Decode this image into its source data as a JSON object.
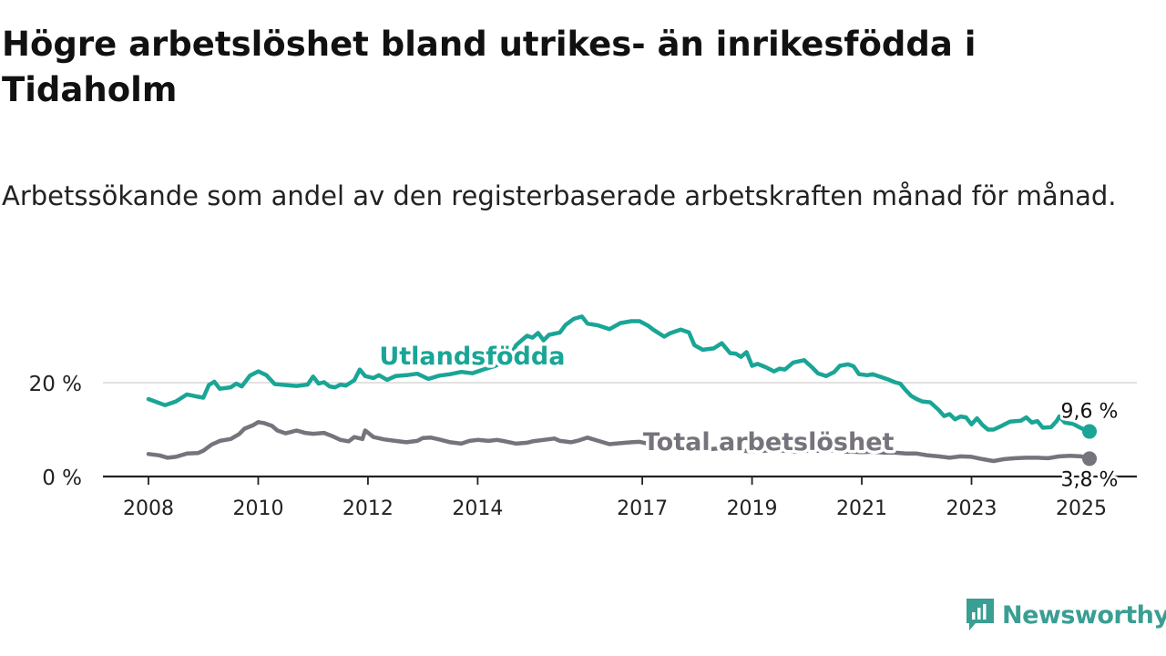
{
  "title": "Högre arbetslöshet bland utrikes- än inrikesfödda i Tidaholm",
  "subtitle": "Arbetssökande som andel av den registerbaserade arbetskraften månad för månad.",
  "brand": {
    "name": "Newsworthy",
    "color": "#3a9e92"
  },
  "colors": {
    "foreign": "#1aa596",
    "total": "#77737c",
    "grid": "#d9d9d9",
    "axis": "#222222"
  },
  "chart_data": {
    "type": "line",
    "title": "Högre arbetslöshet bland utrikes- än inrikesfödda i Tidaholm",
    "subtitle": "Arbetssökande som andel av den registerbaserade arbetskraften månad för månad.",
    "ylim": [
      0,
      36
    ],
    "y_ticks": [
      {
        "value": 0,
        "label": "0 %"
      },
      {
        "value": 20,
        "label": "20 %"
      }
    ],
    "x_ticks": [
      {
        "value": 2008.0,
        "label": "2008"
      },
      {
        "value": 2010.0,
        "label": "2010"
      },
      {
        "value": 2012.0,
        "label": "2012"
      },
      {
        "value": 2014.0,
        "label": "2014"
      },
      {
        "value": 2017.0,
        "label": "2017"
      },
      {
        "value": 2019.0,
        "label": "2019"
      },
      {
        "value": 2021.0,
        "label": "2021"
      },
      {
        "value": 2023.0,
        "label": "2023"
      },
      {
        "value": 2025.0,
        "label": "2025"
      }
    ],
    "series": [
      {
        "name": "Utlandsfödda",
        "color": "#1aa596",
        "end_label": "9,6 %",
        "points": [
          [
            2008.0,
            16.5
          ],
          [
            2008.3,
            15.2
          ],
          [
            2008.5,
            16.0
          ],
          [
            2008.7,
            17.5
          ],
          [
            2008.9,
            17.0
          ],
          [
            2009.0,
            16.8
          ],
          [
            2009.1,
            19.5
          ],
          [
            2009.2,
            20.2
          ],
          [
            2009.3,
            18.7
          ],
          [
            2009.5,
            19.0
          ],
          [
            2009.6,
            19.8
          ],
          [
            2009.7,
            19.2
          ],
          [
            2009.85,
            21.5
          ],
          [
            2010.0,
            22.4
          ],
          [
            2010.15,
            21.6
          ],
          [
            2010.3,
            19.7
          ],
          [
            2010.5,
            19.5
          ],
          [
            2010.7,
            19.3
          ],
          [
            2010.9,
            19.6
          ],
          [
            2011.0,
            21.3
          ],
          [
            2011.1,
            19.8
          ],
          [
            2011.2,
            20.1
          ],
          [
            2011.3,
            19.2
          ],
          [
            2011.4,
            19.0
          ],
          [
            2011.5,
            19.6
          ],
          [
            2011.6,
            19.4
          ],
          [
            2011.75,
            20.5
          ],
          [
            2011.85,
            22.8
          ],
          [
            2011.95,
            21.4
          ],
          [
            2012.1,
            21.0
          ],
          [
            2012.2,
            21.6
          ],
          [
            2012.35,
            20.6
          ],
          [
            2012.5,
            21.4
          ],
          [
            2012.7,
            21.6
          ],
          [
            2012.9,
            21.9
          ],
          [
            2013.1,
            20.8
          ],
          [
            2013.3,
            21.5
          ],
          [
            2013.5,
            21.8
          ],
          [
            2013.7,
            22.3
          ],
          [
            2013.9,
            22.0
          ],
          [
            2014.1,
            22.8
          ],
          [
            2014.3,
            23.5
          ],
          [
            2014.5,
            24.5
          ],
          [
            2014.6,
            25.8
          ],
          [
            2014.7,
            28.0
          ],
          [
            2014.8,
            29.0
          ],
          [
            2014.9,
            30.0
          ],
          [
            2015.0,
            29.6
          ],
          [
            2015.1,
            30.6
          ],
          [
            2015.2,
            29.0
          ],
          [
            2015.3,
            30.2
          ],
          [
            2015.5,
            30.7
          ],
          [
            2015.6,
            32.3
          ],
          [
            2015.75,
            33.6
          ],
          [
            2015.9,
            34.1
          ],
          [
            2016.0,
            32.6
          ],
          [
            2016.2,
            32.2
          ],
          [
            2016.4,
            31.4
          ],
          [
            2016.6,
            32.7
          ],
          [
            2016.8,
            33.1
          ],
          [
            2016.95,
            33.1
          ],
          [
            2017.1,
            32.2
          ],
          [
            2017.2,
            31.3
          ],
          [
            2017.4,
            29.8
          ],
          [
            2017.5,
            30.5
          ],
          [
            2017.7,
            31.3
          ],
          [
            2017.85,
            30.7
          ],
          [
            2017.95,
            28.0
          ],
          [
            2018.1,
            27.0
          ],
          [
            2018.3,
            27.3
          ],
          [
            2018.45,
            28.4
          ],
          [
            2018.6,
            26.3
          ],
          [
            2018.7,
            26.2
          ],
          [
            2018.8,
            25.5
          ],
          [
            2018.9,
            26.5
          ],
          [
            2019.0,
            23.6
          ],
          [
            2019.1,
            24.0
          ],
          [
            2019.25,
            23.3
          ],
          [
            2019.4,
            22.4
          ],
          [
            2019.5,
            23.0
          ],
          [
            2019.6,
            22.8
          ],
          [
            2019.75,
            24.3
          ],
          [
            2019.95,
            24.8
          ],
          [
            2020.1,
            23.2
          ],
          [
            2020.2,
            22.0
          ],
          [
            2020.35,
            21.4
          ],
          [
            2020.5,
            22.3
          ],
          [
            2020.6,
            23.6
          ],
          [
            2020.75,
            23.9
          ],
          [
            2020.85,
            23.5
          ],
          [
            2020.95,
            21.8
          ],
          [
            2021.1,
            21.6
          ],
          [
            2021.2,
            21.8
          ],
          [
            2021.35,
            21.2
          ],
          [
            2021.5,
            20.6
          ],
          [
            2021.6,
            20.1
          ],
          [
            2021.7,
            19.8
          ],
          [
            2021.8,
            18.4
          ],
          [
            2021.9,
            17.2
          ],
          [
            2022.0,
            16.5
          ],
          [
            2022.1,
            16.0
          ],
          [
            2022.25,
            15.8
          ],
          [
            2022.4,
            14.2
          ],
          [
            2022.5,
            12.9
          ],
          [
            2022.6,
            13.3
          ],
          [
            2022.7,
            12.2
          ],
          [
            2022.8,
            12.8
          ],
          [
            2022.9,
            12.6
          ],
          [
            2023.0,
            11.1
          ],
          [
            2023.1,
            12.4
          ],
          [
            2023.2,
            11.0
          ],
          [
            2023.3,
            10.0
          ],
          [
            2023.4,
            10.0
          ],
          [
            2023.55,
            10.8
          ],
          [
            2023.7,
            11.7
          ],
          [
            2023.9,
            11.9
          ],
          [
            2024.0,
            12.6
          ],
          [
            2024.1,
            11.5
          ],
          [
            2024.2,
            11.8
          ],
          [
            2024.3,
            10.4
          ],
          [
            2024.45,
            10.5
          ],
          [
            2024.55,
            11.8
          ],
          [
            2024.6,
            12.8
          ],
          [
            2024.7,
            11.5
          ],
          [
            2024.85,
            11.2
          ],
          [
            2025.0,
            10.3
          ],
          [
            2025.15,
            9.6
          ]
        ]
      },
      {
        "name": "Total arbetslöshet",
        "color": "#77737c",
        "end_label": "3,8 %",
        "points": [
          [
            2008.0,
            4.8
          ],
          [
            2008.2,
            4.5
          ],
          [
            2008.35,
            4.0
          ],
          [
            2008.5,
            4.2
          ],
          [
            2008.7,
            4.9
          ],
          [
            2008.9,
            5.0
          ],
          [
            2009.0,
            5.5
          ],
          [
            2009.15,
            6.8
          ],
          [
            2009.3,
            7.6
          ],
          [
            2009.5,
            8.0
          ],
          [
            2009.65,
            9.0
          ],
          [
            2009.75,
            10.2
          ],
          [
            2009.9,
            10.9
          ],
          [
            2010.0,
            11.6
          ],
          [
            2010.1,
            11.4
          ],
          [
            2010.25,
            10.8
          ],
          [
            2010.35,
            9.8
          ],
          [
            2010.5,
            9.2
          ],
          [
            2010.6,
            9.5
          ],
          [
            2010.7,
            9.8
          ],
          [
            2010.85,
            9.3
          ],
          [
            2011.0,
            9.1
          ],
          [
            2011.2,
            9.3
          ],
          [
            2011.35,
            8.6
          ],
          [
            2011.5,
            7.8
          ],
          [
            2011.65,
            7.5
          ],
          [
            2011.75,
            8.4
          ],
          [
            2011.9,
            8.0
          ],
          [
            2011.95,
            9.8
          ],
          [
            2012.1,
            8.4
          ],
          [
            2012.3,
            7.9
          ],
          [
            2012.5,
            7.6
          ],
          [
            2012.7,
            7.3
          ],
          [
            2012.9,
            7.6
          ],
          [
            2013.0,
            8.2
          ],
          [
            2013.15,
            8.3
          ],
          [
            2013.3,
            7.9
          ],
          [
            2013.5,
            7.3
          ],
          [
            2013.7,
            7.0
          ],
          [
            2013.85,
            7.6
          ],
          [
            2014.0,
            7.8
          ],
          [
            2014.2,
            7.6
          ],
          [
            2014.35,
            7.8
          ],
          [
            2014.5,
            7.5
          ],
          [
            2014.7,
            7.0
          ],
          [
            2014.9,
            7.2
          ],
          [
            2015.0,
            7.5
          ],
          [
            2015.2,
            7.8
          ],
          [
            2015.4,
            8.1
          ],
          [
            2015.5,
            7.6
          ],
          [
            2015.7,
            7.3
          ],
          [
            2015.85,
            7.7
          ],
          [
            2016.0,
            8.3
          ],
          [
            2016.2,
            7.6
          ],
          [
            2016.4,
            6.9
          ],
          [
            2016.6,
            7.1
          ],
          [
            2016.8,
            7.3
          ],
          [
            2016.95,
            7.4
          ],
          [
            2017.1,
            7.0
          ],
          [
            2017.3,
            6.5
          ],
          [
            2017.45,
            6.1
          ],
          [
            2017.6,
            6.1
          ],
          [
            2017.8,
            5.7
          ],
          [
            2018.0,
            5.6
          ],
          [
            2018.2,
            5.8
          ],
          [
            2018.4,
            6.0
          ],
          [
            2018.6,
            5.7
          ],
          [
            2018.8,
            5.5
          ],
          [
            2019.0,
            5.4
          ],
          [
            2019.2,
            5.5
          ],
          [
            2019.4,
            5.6
          ],
          [
            2019.6,
            5.5
          ],
          [
            2019.8,
            5.3
          ],
          [
            2020.0,
            5.5
          ],
          [
            2020.2,
            5.5
          ],
          [
            2020.4,
            5.7
          ],
          [
            2020.6,
            5.3
          ],
          [
            2020.8,
            5.3
          ],
          [
            2021.0,
            5.2
          ],
          [
            2021.2,
            5.3
          ],
          [
            2021.4,
            5.1
          ],
          [
            2021.6,
            5.1
          ],
          [
            2021.8,
            4.9
          ],
          [
            2022.0,
            4.9
          ],
          [
            2022.2,
            4.5
          ],
          [
            2022.4,
            4.3
          ],
          [
            2022.6,
            4.0
          ],
          [
            2022.8,
            4.3
          ],
          [
            2023.0,
            4.2
          ],
          [
            2023.2,
            3.7
          ],
          [
            2023.4,
            3.3
          ],
          [
            2023.6,
            3.7
          ],
          [
            2023.8,
            3.9
          ],
          [
            2024.0,
            4.0
          ],
          [
            2024.2,
            4.0
          ],
          [
            2024.4,
            3.9
          ],
          [
            2024.6,
            4.3
          ],
          [
            2024.8,
            4.4
          ],
          [
            2025.0,
            4.3
          ],
          [
            2025.15,
            3.8
          ]
        ]
      }
    ],
    "annotations": [
      {
        "series": "Utlandsfödda",
        "text": "Utlandsfödda",
        "x": 2013.9,
        "y": 23.9
      },
      {
        "series": "Total arbetslöshet",
        "text": "Total arbetslöshet",
        "x": 2019.3,
        "y": 5.6
      }
    ]
  }
}
